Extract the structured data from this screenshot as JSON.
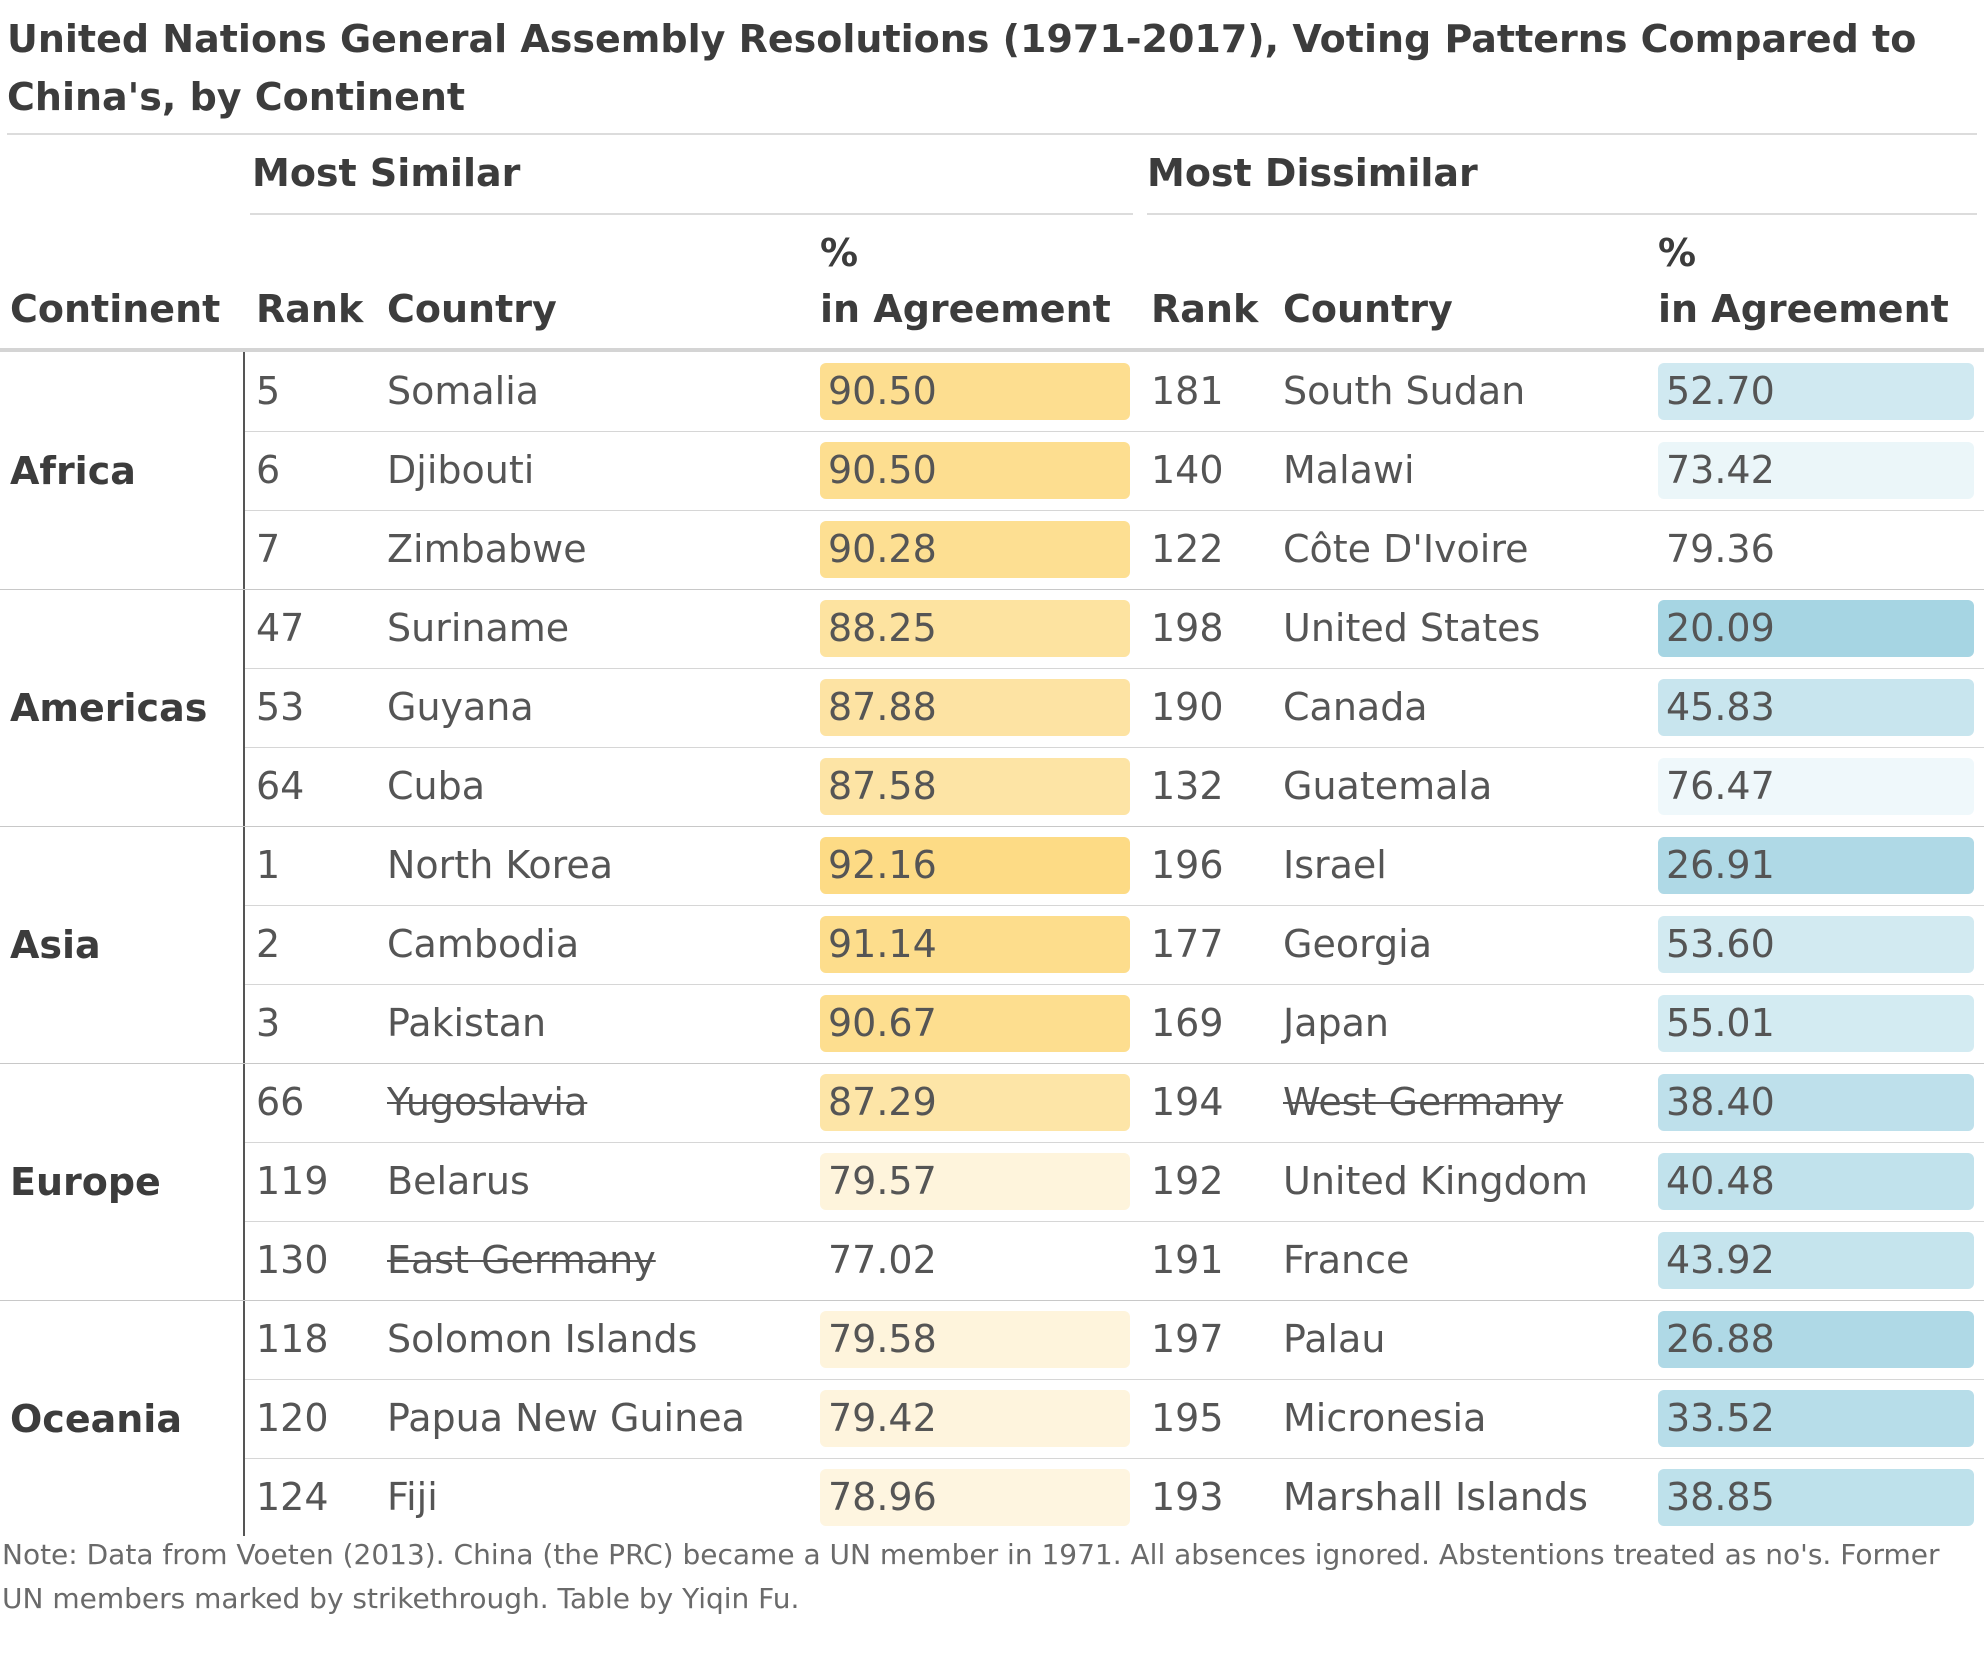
{
  "title": "United Nations General Assembly Resolutions (1971-2017), Voting Patterns Compared to China's, by Continent",
  "headers": {
    "most_similar": "Most Similar",
    "most_dissimilar": "Most Dissimilar",
    "continent": "Continent",
    "rank": "Rank",
    "country": "Country",
    "pct_line1": "%",
    "pct_line2": "in Agreement"
  },
  "note": "Note: Data from Voeten (2013). China (the PRC) became a UN member in 1971. All absences ignored. Abstentions treated as no's. Former UN members marked by strikethrough. Table by Yiqin Fu.",
  "colors": {
    "similar_high": "#fddb85",
    "similar_low": "#fef9ee",
    "dissimilar_high": "#a6d5e3",
    "dissimilar_low": "#f4fafc"
  },
  "chart_data": {
    "type": "table",
    "title": "United Nations General Assembly Resolutions (1971-2017), Voting Patterns Compared to China's, by Continent",
    "columns": [
      "Continent",
      "Most Similar Rank",
      "Most Similar Country",
      "Most Similar % in Agreement",
      "Most Dissimilar Rank",
      "Most Dissimilar Country",
      "Most Dissimilar % in Agreement"
    ],
    "groups": [
      {
        "continent": "Africa",
        "rows": [
          {
            "sim_rank": "5",
            "sim_country": "Somalia",
            "sim_former": false,
            "sim_pct": "90.50",
            "dis_rank": "181",
            "dis_country": "South Sudan",
            "dis_former": false,
            "dis_pct": "52.70"
          },
          {
            "sim_rank": "6",
            "sim_country": "Djibouti",
            "sim_former": false,
            "sim_pct": "90.50",
            "dis_rank": "140",
            "dis_country": "Malawi",
            "dis_former": false,
            "dis_pct": "73.42"
          },
          {
            "sim_rank": "7",
            "sim_country": "Zimbabwe",
            "sim_former": false,
            "sim_pct": "90.28",
            "dis_rank": "122",
            "dis_country": "Côte D'Ivoire",
            "dis_former": false,
            "dis_pct": "79.36"
          }
        ]
      },
      {
        "continent": "Americas",
        "rows": [
          {
            "sim_rank": "47",
            "sim_country": "Suriname",
            "sim_former": false,
            "sim_pct": "88.25",
            "dis_rank": "198",
            "dis_country": "United States",
            "dis_former": false,
            "dis_pct": "20.09"
          },
          {
            "sim_rank": "53",
            "sim_country": "Guyana",
            "sim_former": false,
            "sim_pct": "87.88",
            "dis_rank": "190",
            "dis_country": "Canada",
            "dis_former": false,
            "dis_pct": "45.83"
          },
          {
            "sim_rank": "64",
            "sim_country": "Cuba",
            "sim_former": false,
            "sim_pct": "87.58",
            "dis_rank": "132",
            "dis_country": "Guatemala",
            "dis_former": false,
            "dis_pct": "76.47"
          }
        ]
      },
      {
        "continent": "Asia",
        "rows": [
          {
            "sim_rank": "1",
            "sim_country": "North Korea",
            "sim_former": false,
            "sim_pct": "92.16",
            "dis_rank": "196",
            "dis_country": "Israel",
            "dis_former": false,
            "dis_pct": "26.91"
          },
          {
            "sim_rank": "2",
            "sim_country": "Cambodia",
            "sim_former": false,
            "sim_pct": "91.14",
            "dis_rank": "177",
            "dis_country": "Georgia",
            "dis_former": false,
            "dis_pct": "53.60"
          },
          {
            "sim_rank": "3",
            "sim_country": "Pakistan",
            "sim_former": false,
            "sim_pct": "90.67",
            "dis_rank": "169",
            "dis_country": "Japan",
            "dis_former": false,
            "dis_pct": "55.01"
          }
        ]
      },
      {
        "continent": "Europe",
        "rows": [
          {
            "sim_rank": "66",
            "sim_country": "Yugoslavia",
            "sim_former": true,
            "sim_pct": "87.29",
            "dis_rank": "194",
            "dis_country": "West Germany",
            "dis_former": true,
            "dis_pct": "38.40"
          },
          {
            "sim_rank": "119",
            "sim_country": "Belarus",
            "sim_former": false,
            "sim_pct": "79.57",
            "dis_rank": "192",
            "dis_country": "United Kingdom",
            "dis_former": false,
            "dis_pct": "40.48"
          },
          {
            "sim_rank": "130",
            "sim_country": "East Germany",
            "sim_former": true,
            "sim_pct": "77.02",
            "dis_rank": "191",
            "dis_country": "France",
            "dis_former": false,
            "dis_pct": "43.92"
          }
        ]
      },
      {
        "continent": "Oceania",
        "rows": [
          {
            "sim_rank": "118",
            "sim_country": "Solomon Islands",
            "sim_former": false,
            "sim_pct": "79.58",
            "dis_rank": "197",
            "dis_country": "Palau",
            "dis_former": false,
            "dis_pct": "26.88"
          },
          {
            "sim_rank": "120",
            "sim_country": "Papua New Guinea",
            "sim_former": false,
            "sim_pct": "79.42",
            "dis_rank": "195",
            "dis_country": "Micronesia",
            "dis_former": false,
            "dis_pct": "33.52"
          },
          {
            "sim_rank": "124",
            "sim_country": "Fiji",
            "sim_former": false,
            "sim_pct": "78.96",
            "dis_rank": "193",
            "dis_country": "Marshall Islands",
            "dis_former": false,
            "dis_pct": "38.85"
          }
        ]
      }
    ]
  }
}
